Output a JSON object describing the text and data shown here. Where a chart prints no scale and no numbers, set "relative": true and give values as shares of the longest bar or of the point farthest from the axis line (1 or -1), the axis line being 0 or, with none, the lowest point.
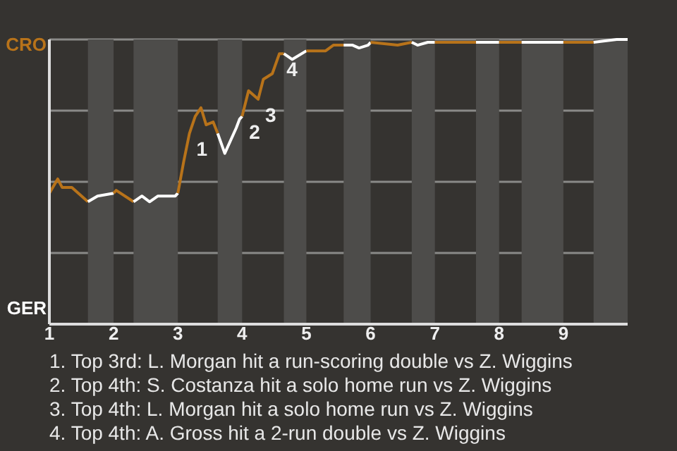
{
  "chart_data": {
    "type": "line",
    "relative": true,
    "xlim": [
      1,
      10
    ],
    "xticks": [
      1,
      2,
      3,
      4,
      5,
      6,
      7,
      8,
      9
    ],
    "grid": "y",
    "series": [
      {
        "color": "#b8731a",
        "x": [
          1,
          1.13,
          1.2,
          1.35,
          1.6
        ],
        "values": [
          0.46,
          0.51,
          0.48,
          0.48,
          0.43
        ]
      },
      {
        "color": "#ffffff",
        "x": [
          1.6,
          1.75,
          2
        ],
        "values": [
          0.43,
          0.45,
          0.46
        ]
      },
      {
        "color": "#b8731a",
        "x": [
          2,
          2.04,
          2.31
        ],
        "values": [
          0.46,
          0.47,
          0.43
        ]
      },
      {
        "color": "#ffffff",
        "x": [
          2.31,
          2.44,
          2.56,
          2.69,
          2.96,
          3
        ],
        "values": [
          0.43,
          0.45,
          0.43,
          0.45,
          0.45,
          0.46
        ]
      },
      {
        "color": "#b8731a",
        "x": [
          3,
          3.09,
          3.18,
          3.27,
          3.36,
          3.44,
          3.55,
          3.62
        ],
        "values": [
          0.46,
          0.57,
          0.67,
          0.73,
          0.76,
          0.7,
          0.71,
          0.67
        ]
      },
      {
        "color": "#ffffff",
        "x": [
          3.62,
          3.73,
          3.91,
          3.96,
          4
        ],
        "values": [
          0.67,
          0.6,
          0.69,
          0.72,
          0.73
        ]
      },
      {
        "color": "#b8731a",
        "x": [
          4,
          4.1,
          4.25,
          4.33,
          4.47,
          4.58,
          4.65
        ],
        "values": [
          0.73,
          0.82,
          0.79,
          0.86,
          0.88,
          0.95,
          0.95
        ]
      },
      {
        "color": "#ffffff",
        "x": [
          4.65,
          4.78,
          5
        ],
        "values": [
          0.95,
          0.93,
          0.96
        ]
      },
      {
        "color": "#b8731a",
        "x": [
          5,
          5.3,
          5.42,
          5.58
        ],
        "values": [
          0.96,
          0.96,
          0.98,
          0.98
        ]
      },
      {
        "color": "#ffffff",
        "x": [
          5.58,
          5.72,
          5.82,
          5.96,
          6
        ],
        "values": [
          0.98,
          0.98,
          0.97,
          0.98,
          0.99
        ]
      },
      {
        "color": "#b8731a",
        "x": [
          6,
          6.42,
          6.64
        ],
        "values": [
          0.99,
          0.98,
          0.99
        ]
      },
      {
        "color": "#ffffff",
        "x": [
          6.64,
          6.73,
          6.89,
          7
        ],
        "values": [
          0.99,
          0.98,
          0.99,
          0.99
        ]
      },
      {
        "color": "#b8731a",
        "x": [
          7,
          7.33,
          7.44,
          7.64
        ],
        "values": [
          0.99,
          0.99,
          0.99,
          0.99
        ]
      },
      {
        "color": "#ffffff",
        "x": [
          7.64,
          7.73,
          7.89,
          8
        ],
        "values": [
          0.99,
          0.99,
          0.99,
          0.99
        ]
      },
      {
        "color": "#b8731a",
        "x": [
          8,
          8.35
        ],
        "values": [
          0.99,
          0.99
        ]
      },
      {
        "color": "#ffffff",
        "x": [
          8.35,
          9
        ],
        "values": [
          0.99,
          0.99
        ]
      },
      {
        "color": "#b8731a",
        "x": [
          9,
          9.47
        ],
        "values": [
          0.99,
          0.99
        ]
      },
      {
        "color": "#ffffff",
        "x": [
          9.47,
          9.83,
          10
        ],
        "values": [
          0.99,
          1,
          1
        ]
      }
    ],
    "bands": [
      {
        "axis": "x",
        "from": 1.6,
        "to": 2,
        "color": "#4d4c4a"
      },
      {
        "axis": "x",
        "from": 2.31,
        "to": 3,
        "color": "#4d4c4a"
      },
      {
        "axis": "x",
        "from": 3.62,
        "to": 4,
        "color": "#4d4c4a"
      },
      {
        "axis": "x",
        "from": 4.65,
        "to": 5,
        "color": "#4d4c4a"
      },
      {
        "axis": "x",
        "from": 5.58,
        "to": 6,
        "color": "#4d4c4a"
      },
      {
        "axis": "x",
        "from": 6.64,
        "to": 7,
        "color": "#4d4c4a"
      },
      {
        "axis": "x",
        "from": 7.64,
        "to": 8,
        "color": "#4d4c4a"
      },
      {
        "axis": "x",
        "from": 8.35,
        "to": 9,
        "color": "#4d4c4a"
      },
      {
        "axis": "x",
        "from": 9.47,
        "to": 10,
        "color": "#4d4c4a"
      }
    ],
    "annotations": [
      "CRO",
      "GER",
      {
        "text": "1",
        "x": 3.18,
        "y": 0.67
      },
      {
        "text": "2",
        "x": 4,
        "y": 0.73
      },
      {
        "text": "3",
        "x": 4.25,
        "y": 0.79
      },
      {
        "text": "4",
        "x": 4.58,
        "y": 0.95
      },
      "1. Top 3rd: L. Morgan hit a run-scoring double vs Z. Wiggins",
      "2. Top 4th: S. Costanza hit a solo home run vs Z. Wiggins",
      "3. Top 4th: L. Morgan hit a solo home run vs Z. Wiggins",
      "4. Top 4th: A. Gross hit a 2-run double vs Z. Wiggins"
    ]
  }
}
